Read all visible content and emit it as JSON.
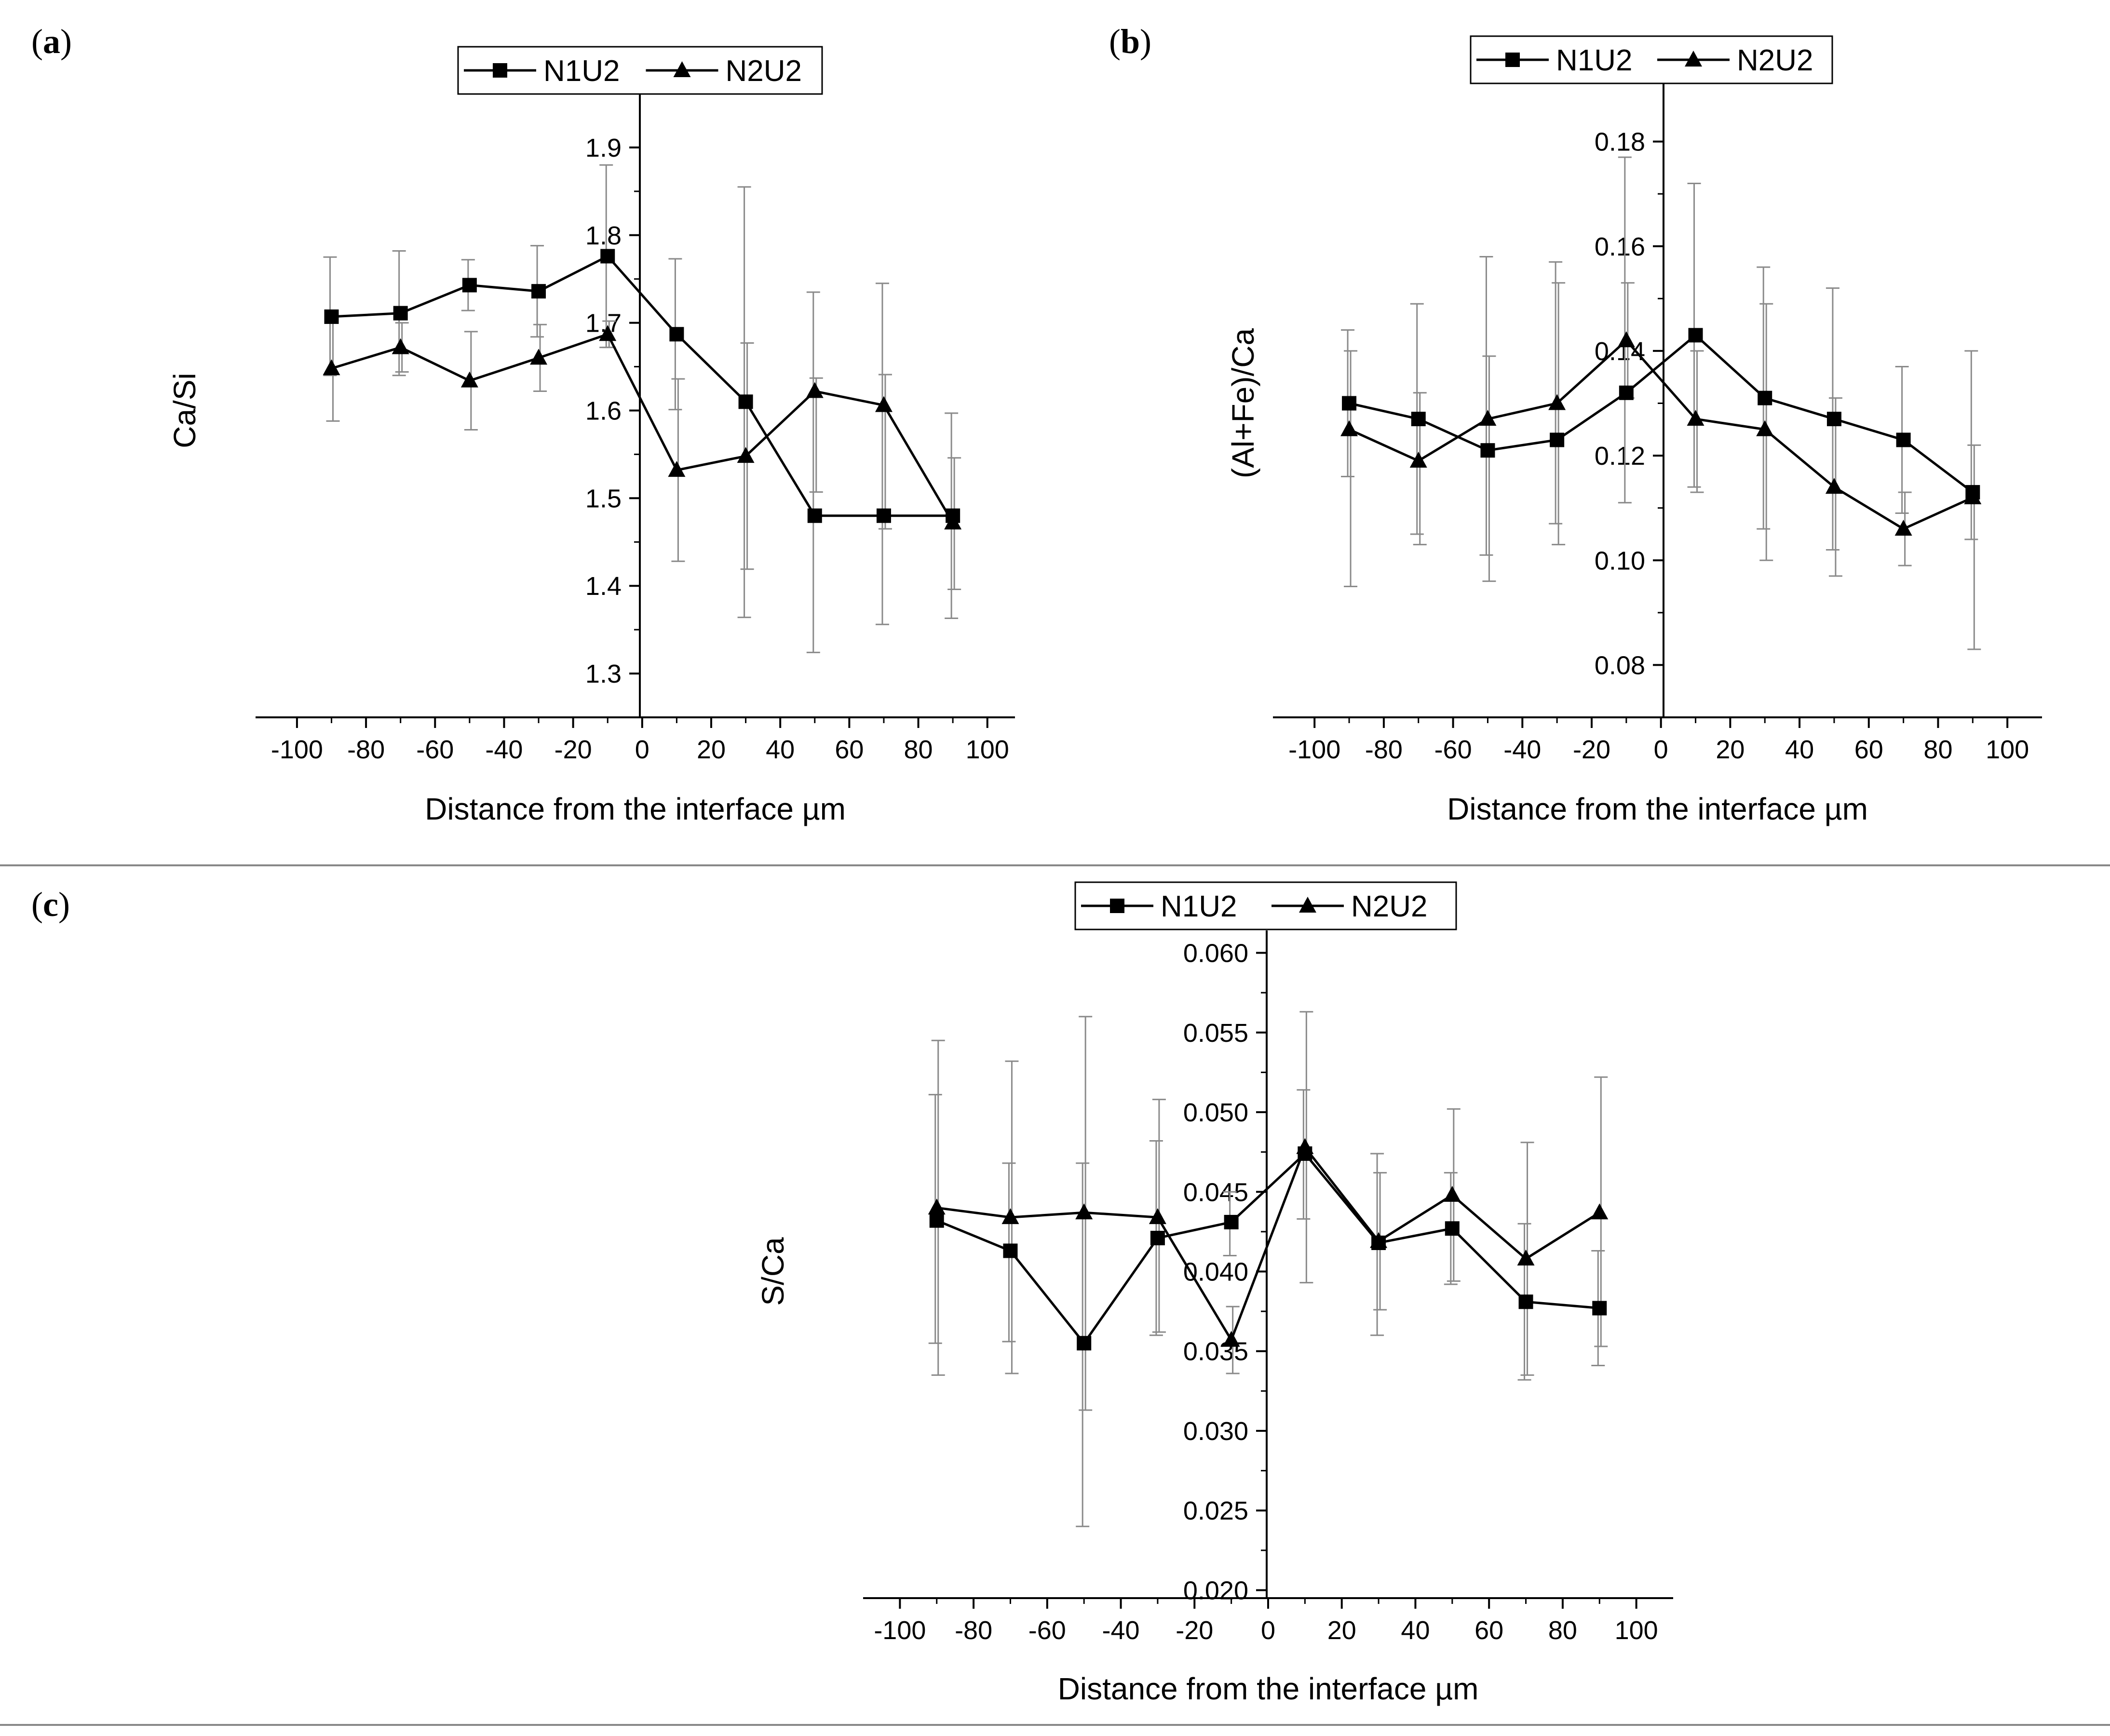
{
  "panels": [
    {
      "letter": "(a)",
      "letter_bold": "a"
    },
    {
      "letter": "(b)",
      "letter_bold": "b"
    },
    {
      "letter": "(c)",
      "letter_bold": "c"
    }
  ],
  "chart_data": [
    {
      "type": "line",
      "panel": "a",
      "xlabel": "Distance from the interface µm",
      "ylabel": "Ca/Si",
      "x": [
        -90,
        -70,
        -50,
        -30,
        -10,
        10,
        30,
        50,
        70,
        90
      ],
      "xticks": [
        -100,
        -80,
        -60,
        -40,
        -20,
        0,
        20,
        40,
        60,
        80,
        100
      ],
      "yticks": [
        "1.3",
        "1.4",
        "1.5",
        "1.6",
        "1.7",
        "1.8",
        "1.9"
      ],
      "xlim": [
        -112,
        108
      ],
      "ylim": [
        1.25,
        1.95
      ],
      "legend_position": "top-center",
      "series": [
        {
          "name": "N1U2",
          "marker": "square",
          "values": [
            1.707,
            1.711,
            1.743,
            1.736,
            1.776,
            1.687,
            1.61,
            1.48,
            1.48,
            1.48
          ],
          "err_hi": [
            1.775,
            1.782,
            1.772,
            1.788,
            1.88,
            1.773,
            1.855,
            1.735,
            1.745,
            1.597
          ],
          "err_lo": [
            1.64,
            1.64,
            1.714,
            1.684,
            1.672,
            1.601,
            1.364,
            1.324,
            1.356,
            1.363
          ]
        },
        {
          "name": "N2U2",
          "marker": "triangle",
          "values": [
            1.648,
            1.672,
            1.634,
            1.66,
            1.687,
            1.532,
            1.548,
            1.622,
            1.606,
            1.472
          ],
          "err_hi": [
            1.708,
            1.7,
            1.69,
            1.698,
            1.702,
            1.636,
            1.677,
            1.637,
            1.641,
            1.546
          ],
          "err_lo": [
            1.588,
            1.644,
            1.578,
            1.622,
            1.672,
            1.428,
            1.419,
            1.507,
            1.465,
            1.396
          ]
        }
      ]
    },
    {
      "type": "line",
      "panel": "b",
      "xlabel": "Distance from the interface µm",
      "ylabel": "(Al+Fe)/Ca",
      "x": [
        -90,
        -70,
        -50,
        -30,
        -10,
        10,
        30,
        50,
        70,
        90
      ],
      "xticks": [
        -100,
        -80,
        -60,
        -40,
        -20,
        0,
        20,
        40,
        60,
        80,
        100
      ],
      "yticks": [
        "0.08",
        "0.10",
        "0.12",
        "0.14",
        "0.16",
        "0.18"
      ],
      "xlim": [
        -112,
        110
      ],
      "ylim": [
        0.07,
        0.19
      ],
      "legend_position": "top-center",
      "series": [
        {
          "name": "N1U2",
          "marker": "square",
          "values": [
            0.13,
            0.127,
            0.121,
            0.123,
            0.132,
            0.143,
            0.131,
            0.127,
            0.123,
            0.113
          ],
          "err_hi": [
            0.144,
            0.149,
            0.158,
            0.157,
            0.177,
            0.172,
            0.156,
            0.152,
            0.137,
            0.14
          ],
          "err_lo": [
            0.116,
            0.105,
            0.101,
            0.107,
            0.111,
            0.114,
            0.106,
            0.102,
            0.109,
            0.104
          ]
        },
        {
          "name": "N2U2",
          "marker": "triangle",
          "values": [
            0.125,
            0.119,
            0.127,
            0.13,
            0.142,
            0.127,
            0.125,
            0.114,
            0.106,
            0.112
          ],
          "err_hi": [
            0.14,
            0.132,
            0.139,
            0.153,
            0.153,
            0.14,
            0.149,
            0.131,
            0.113,
            0.122
          ],
          "err_lo": [
            0.095,
            0.103,
            0.096,
            0.103,
            0.131,
            0.113,
            0.1,
            0.097,
            0.099,
            0.083
          ]
        }
      ]
    },
    {
      "type": "line",
      "panel": "c",
      "xlabel": "Distance from the interface µm",
      "ylabel": "S/Ca",
      "x": [
        -90,
        -70,
        -50,
        -30,
        -10,
        10,
        30,
        50,
        70,
        90
      ],
      "xticks": [
        -100,
        -80,
        -60,
        -40,
        -20,
        0,
        20,
        40,
        60,
        80,
        100
      ],
      "yticks": [
        "0.020",
        "0.025",
        "0.030",
        "0.035",
        "0.040",
        "0.045",
        "0.050",
        "0.055",
        "0.060"
      ],
      "xlim": [
        -110,
        110
      ],
      "ylim": [
        0.0195,
        0.0605
      ],
      "legend_position": "top-center",
      "series": [
        {
          "name": "N1U2",
          "marker": "square",
          "values": [
            0.0432,
            0.0413,
            0.0355,
            0.0421,
            0.0431,
            0.0474,
            0.0418,
            0.0427,
            0.0381,
            0.0377
          ],
          "err_hi": [
            0.0511,
            0.0468,
            0.0468,
            0.0482,
            0.045,
            0.0514,
            0.0474,
            0.0462,
            0.043,
            0.0413
          ],
          "err_lo": [
            0.0355,
            0.0356,
            0.024,
            0.036,
            0.041,
            0.0433,
            0.036,
            0.0392,
            0.0332,
            0.0341
          ]
        },
        {
          "name": "N2U2",
          "marker": "triangle",
          "values": [
            0.044,
            0.0434,
            0.0437,
            0.0434,
            0.0357,
            0.0478,
            0.0419,
            0.0448,
            0.0408,
            0.0437
          ],
          "err_hi": [
            0.0545,
            0.0532,
            0.056,
            0.0508,
            0.0378,
            0.0563,
            0.0462,
            0.0502,
            0.0481,
            0.0522
          ],
          "err_lo": [
            0.0335,
            0.0336,
            0.0313,
            0.0362,
            0.0336,
            0.0393,
            0.0376,
            0.0394,
            0.0335,
            0.0353
          ]
        }
      ]
    }
  ]
}
